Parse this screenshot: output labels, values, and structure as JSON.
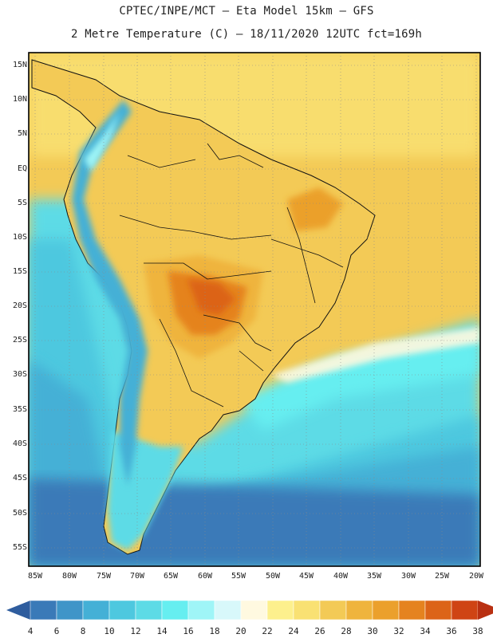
{
  "title_line1": "CPTEC/INPE/MCT –  Eta Model 15km – GFS",
  "title_line2": "2 Metre Temperature (C) – 18/11/2020 12UTC fct=169h",
  "lat_labels": [
    "15N",
    "10N",
    "5N",
    "EQ",
    "5S",
    "10S",
    "15S",
    "20S",
    "25S",
    "30S",
    "35S",
    "40S",
    "45S",
    "50S",
    "55S"
  ],
  "lon_labels": [
    "85W",
    "80W",
    "75W",
    "70W",
    "65W",
    "60W",
    "55W",
    "50W",
    "45W",
    "40W",
    "35W",
    "30W",
    "25W",
    "20W"
  ],
  "colorbar": {
    "labels": [
      "4",
      "6",
      "8",
      "10",
      "12",
      "14",
      "16",
      "18",
      "20",
      "22",
      "24",
      "26",
      "28",
      "30",
      "32",
      "34",
      "36",
      "38"
    ],
    "colors": [
      "#2f5d9e",
      "#3a7ab8",
      "#3f95c8",
      "#44b0d6",
      "#4ec8df",
      "#5ddbe6",
      "#66eef0",
      "#9ff5f7",
      "#d8f8fa",
      "#fff9e0",
      "#fdf08d",
      "#f9e173",
      "#f3ca56",
      "#efb43d",
      "#eba02c",
      "#e5831f",
      "#dc6418",
      "#cf4414",
      "#b93012"
    ]
  }
}
